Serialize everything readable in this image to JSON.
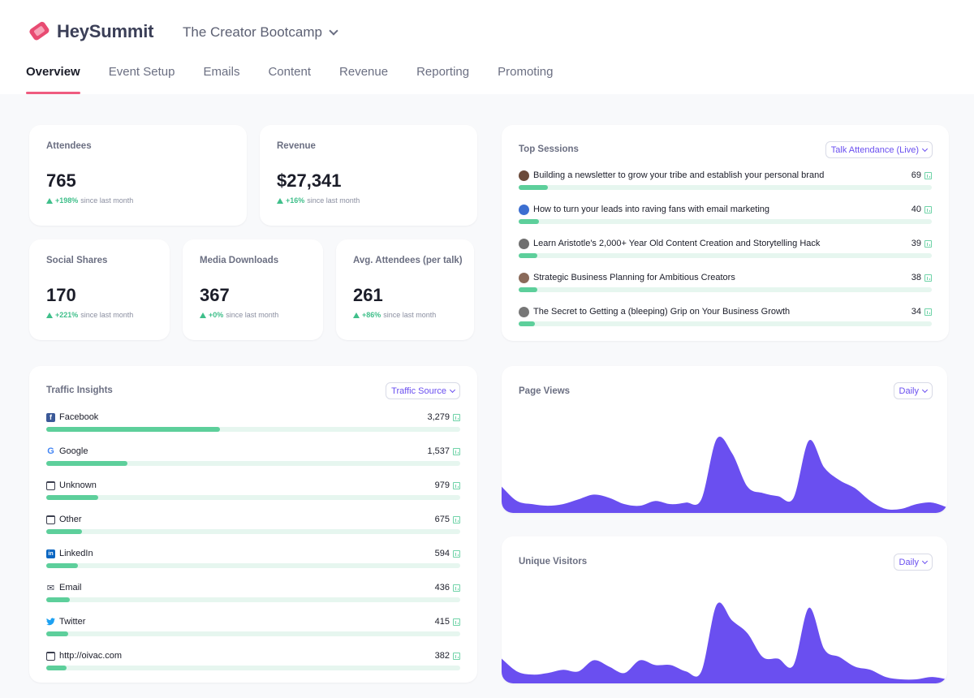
{
  "brand": {
    "name": "HeySummit"
  },
  "event": {
    "name": "The Creator Bootcamp"
  },
  "tabs": [
    "Overview",
    "Event Setup",
    "Emails",
    "Content",
    "Revenue",
    "Reporting",
    "Promoting"
  ],
  "stats": {
    "attendees": {
      "label": "Attendees",
      "value": "765",
      "delta": "+198%",
      "since": "since last month"
    },
    "revenue": {
      "label": "Revenue",
      "value": "$27,341",
      "delta": "+16%",
      "since": "since last month"
    },
    "social": {
      "label": "Social Shares",
      "value": "170",
      "delta": "+221%",
      "since": "since last month"
    },
    "media": {
      "label": "Media Downloads",
      "value": "367",
      "delta": "+0%",
      "since": "since last month"
    },
    "avg": {
      "label": "Avg. Attendees (per talk)",
      "value": "261",
      "delta": "+86%",
      "since": "since last month"
    }
  },
  "top_sessions": {
    "title": "Top Sessions",
    "filter": "Talk Attendance (Live)",
    "items": [
      {
        "label": "Building a newsletter to grow your tribe and establish your personal brand",
        "value": "69",
        "fraction": 0.07
      },
      {
        "label": "How to turn your leads into raving fans with email marketing",
        "value": "40",
        "fraction": 0.05
      },
      {
        "label": "Learn Aristotle's 2,000+ Year Old Content Creation and Storytelling Hack",
        "value": "39",
        "fraction": 0.045
      },
      {
        "label": "Strategic Business Planning for Ambitious Creators",
        "value": "38",
        "fraction": 0.045
      },
      {
        "label": "The Secret to Getting a (bleeping) Grip on Your Business Growth",
        "value": "34",
        "fraction": 0.04
      }
    ]
  },
  "traffic": {
    "title": "Traffic Insights",
    "filter": "Traffic Source",
    "items": [
      {
        "label": "Facebook",
        "value": "3,279",
        "icon": "facebook-icon",
        "fraction": 0.42
      },
      {
        "label": "Google",
        "value": "1,537",
        "icon": "google-icon",
        "fraction": 0.197
      },
      {
        "label": "Unknown",
        "value": "979",
        "icon": "browser-window-icon",
        "fraction": 0.125
      },
      {
        "label": "Other",
        "value": "675",
        "icon": "browser-window-icon",
        "fraction": 0.086
      },
      {
        "label": "LinkedIn",
        "value": "594",
        "icon": "linkedin-icon",
        "fraction": 0.076
      },
      {
        "label": "Email",
        "value": "436",
        "icon": "mail-icon",
        "fraction": 0.056
      },
      {
        "label": "Twitter",
        "value": "415",
        "icon": "twitter-icon",
        "fraction": 0.053
      },
      {
        "label": "http://oivac.com",
        "value": "382",
        "icon": "browser-window-icon",
        "fraction": 0.049
      }
    ]
  },
  "page_views": {
    "title": "Page Views",
    "filter": "Daily"
  },
  "unique_visitors": {
    "title": "Unique Visitors",
    "filter": "Daily"
  },
  "colors": {
    "accent": "#6a4ff0",
    "tab_underline": "#ef5b7f",
    "bar": "#5dcf9b",
    "area": "#6a4ff0"
  },
  "chart_data": [
    {
      "type": "area",
      "title": "Page Views",
      "x": [
        1,
        2,
        3,
        4,
        5,
        6,
        7,
        8,
        9,
        10,
        11,
        12,
        13,
        14,
        15,
        16,
        17,
        18,
        19,
        20,
        21,
        22,
        23,
        24,
        25,
        26,
        27,
        28,
        29,
        30
      ],
      "values": [
        0.3,
        0.12,
        0.08,
        0.06,
        0.08,
        0.14,
        0.2,
        0.16,
        0.08,
        0.06,
        0.12,
        0.08,
        0.1,
        0.14,
        0.9,
        0.72,
        0.3,
        0.22,
        0.18,
        0.16,
        0.88,
        0.54,
        0.38,
        0.28,
        0.12,
        0.02,
        0.02,
        0.08,
        0.1,
        0.04
      ]
    },
    {
      "type": "area",
      "title": "Unique Visitors",
      "x": [
        1,
        2,
        3,
        4,
        5,
        6,
        7,
        8,
        9,
        10,
        11,
        12,
        13,
        14,
        15,
        16,
        17,
        18,
        19,
        20,
        21,
        22,
        23,
        24,
        25,
        26,
        27,
        28,
        29,
        30
      ],
      "values": [
        0.28,
        0.12,
        0.08,
        0.1,
        0.14,
        0.12,
        0.26,
        0.18,
        0.1,
        0.26,
        0.2,
        0.2,
        0.12,
        0.12,
        0.96,
        0.76,
        0.6,
        0.3,
        0.28,
        0.2,
        0.92,
        0.4,
        0.3,
        0.18,
        0.14,
        0.05,
        0.02,
        0.02,
        0.05,
        0.02
      ]
    }
  ]
}
